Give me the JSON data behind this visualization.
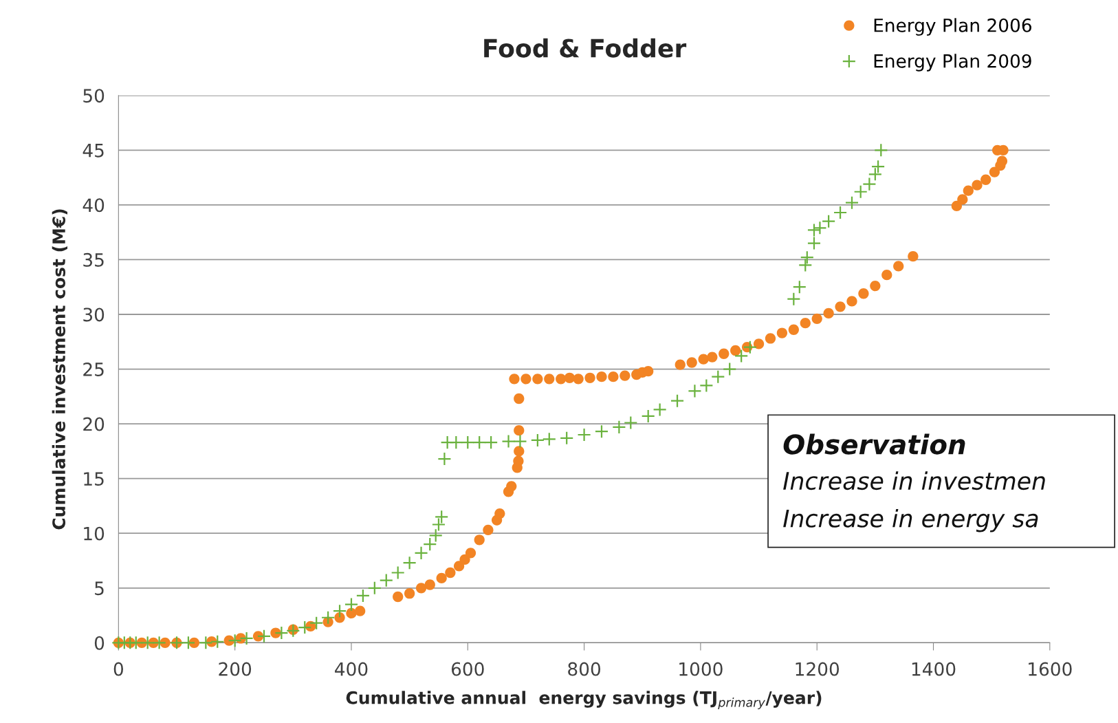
{
  "chart_data": {
    "type": "scatter",
    "title": "Food & Fodder",
    "xlabel": "Cumulative annual  energy savings (TJ$_{primary}$/year)",
    "ylabel": "Cumulative investment cost (M€)",
    "xlim": [
      0,
      1600
    ],
    "xticks": [
      0,
      200,
      400,
      600,
      800,
      1000,
      1200,
      1400,
      1600
    ],
    "ylim": [
      0,
      50
    ],
    "yticks": [
      0,
      5,
      10,
      15,
      20,
      25,
      30,
      35,
      40,
      45,
      50
    ],
    "grid": "y",
    "legend": "top right",
    "annotations": [
      "Observation",
      "Increase in investmen",
      "Increase in energy sa"
    ],
    "series": [
      {
        "name": "Energy Plan 2006",
        "color": "#f28424",
        "marker": "circle",
        "x": [
          0,
          20,
          40,
          60,
          80,
          100,
          130,
          160,
          190,
          210,
          240,
          270,
          300,
          330,
          360,
          380,
          400,
          415,
          480,
          500,
          520,
          535,
          555,
          570,
          585,
          595,
          605,
          620,
          635,
          650,
          655,
          670,
          675,
          685,
          687,
          688,
          688,
          688,
          680,
          700,
          720,
          740,
          760,
          775,
          790,
          810,
          830,
          850,
          870,
          890,
          900,
          910,
          965,
          985,
          1005,
          1020,
          1040,
          1060,
          1080,
          1100,
          1120,
          1140,
          1160,
          1180,
          1200,
          1220,
          1240,
          1260,
          1280,
          1300,
          1320,
          1340,
          1365,
          1440,
          1450,
          1460,
          1475,
          1490,
          1505,
          1515,
          1518,
          1510,
          1520
        ],
        "values": [
          0,
          0,
          0,
          0,
          0,
          0,
          0,
          0.1,
          0.2,
          0.4,
          0.6,
          0.9,
          1.2,
          1.5,
          1.9,
          2.3,
          2.7,
          2.9,
          4.2,
          4.5,
          5.0,
          5.3,
          5.9,
          6.4,
          7.0,
          7.6,
          8.2,
          9.4,
          10.3,
          11.2,
          11.8,
          13.8,
          14.3,
          16.0,
          16.6,
          17.5,
          19.4,
          22.3,
          24.1,
          24.1,
          24.1,
          24.1,
          24.1,
          24.2,
          24.1,
          24.2,
          24.3,
          24.3,
          24.4,
          24.5,
          24.7,
          24.8,
          25.4,
          25.6,
          25.9,
          26.1,
          26.4,
          26.7,
          27.0,
          27.3,
          27.8,
          28.3,
          28.6,
          29.2,
          29.6,
          30.1,
          30.7,
          31.2,
          31.9,
          32.6,
          33.6,
          34.4,
          35.3,
          39.9,
          40.5,
          41.3,
          41.8,
          42.3,
          43.0,
          43.6,
          44.0,
          45.0,
          45.0
        ]
      },
      {
        "name": "Energy Plan 2009",
        "color": "#6ab23e",
        "marker": "cross",
        "x": [
          0,
          10,
          20,
          30,
          50,
          70,
          100,
          120,
          150,
          170,
          200,
          220,
          250,
          280,
          300,
          320,
          340,
          360,
          380,
          400,
          420,
          440,
          460,
          480,
          500,
          520,
          535,
          545,
          550,
          555,
          560,
          565,
          580,
          600,
          620,
          640,
          670,
          690,
          720,
          740,
          770,
          800,
          830,
          860,
          880,
          910,
          930,
          960,
          990,
          1010,
          1030,
          1050,
          1070,
          1085,
          1160,
          1170,
          1180,
          1183,
          1195,
          1195,
          1205,
          1220,
          1240,
          1260,
          1275,
          1290,
          1300,
          1305,
          1310
        ],
        "values": [
          0,
          0,
          0,
          0,
          0,
          0,
          0,
          0,
          0,
          0.1,
          0.2,
          0.4,
          0.6,
          0.9,
          1.1,
          1.4,
          1.8,
          2.3,
          2.9,
          3.5,
          4.3,
          5.0,
          5.7,
          6.4,
          7.3,
          8.2,
          9.0,
          9.8,
          10.8,
          11.5,
          16.8,
          18.3,
          18.3,
          18.3,
          18.3,
          18.3,
          18.4,
          18.4,
          18.5,
          18.6,
          18.7,
          19.0,
          19.3,
          19.7,
          20.1,
          20.7,
          21.3,
          22.1,
          23.0,
          23.5,
          24.3,
          25.0,
          26.2,
          27.0,
          31.4,
          32.5,
          34.5,
          35.2,
          36.5,
          37.7,
          37.9,
          38.5,
          39.3,
          40.2,
          41.2,
          41.9,
          42.8,
          43.5,
          45.0
        ]
      }
    ]
  }
}
